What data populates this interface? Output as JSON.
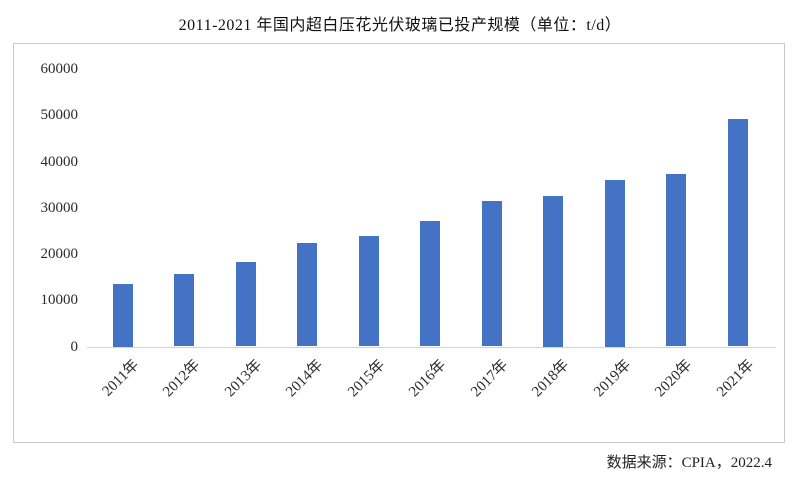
{
  "chart_data": {
    "type": "bar",
    "title": "2011-2021 年国内超白压花光伏玻璃已投产规模（单位：t/d）",
    "unit": "t/d",
    "categories": [
      "2011年",
      "2012年",
      "2013年",
      "2014年",
      "2015年",
      "2016年",
      "2017年",
      "2018年",
      "2019年",
      "2020年",
      "2021年"
    ],
    "values": [
      13500,
      15700,
      18300,
      22400,
      23800,
      27100,
      31400,
      32500,
      36000,
      37200,
      49200
    ],
    "ylim": [
      0,
      60000
    ],
    "yticks": [
      0,
      10000,
      20000,
      30000,
      40000,
      50000,
      60000
    ],
    "xlabel": "",
    "ylabel": "",
    "grid": false,
    "legend": false,
    "bar_color": "#4472C4",
    "axis_color": "#d4d4d4",
    "frame_border_color": "#c9c9c9",
    "source": "数据来源：CPIA，2022.4"
  }
}
